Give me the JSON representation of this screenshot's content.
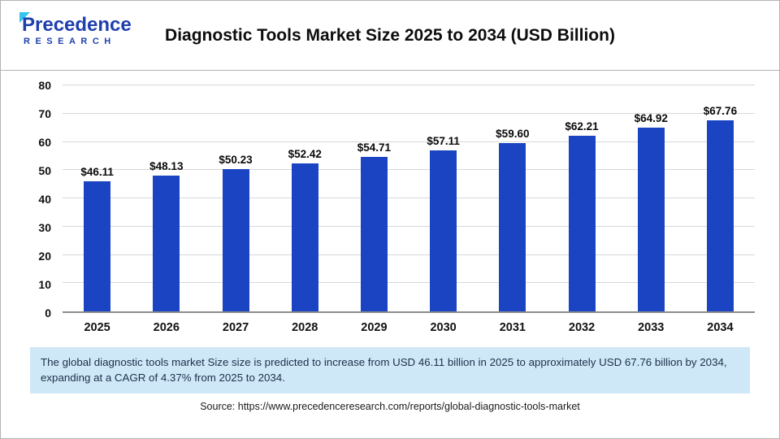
{
  "header": {
    "logo": {
      "line1": "Precedence",
      "line2": "RESEARCH"
    },
    "title": "Diagnostic Tools Market Size 2025 to 2034 (USD Billion)"
  },
  "chart_data": {
    "type": "bar",
    "title": "Diagnostic Tools Market Size 2025 to 2034 (USD Billion)",
    "categories": [
      "2025",
      "2026",
      "2027",
      "2028",
      "2029",
      "2030",
      "2031",
      "2032",
      "2033",
      "2034"
    ],
    "values": [
      46.11,
      48.13,
      50.23,
      52.42,
      54.71,
      57.11,
      59.6,
      62.21,
      64.92,
      67.76
    ],
    "labels": [
      "$46.11",
      "$48.13",
      "$50.23",
      "$52.42",
      "$54.71",
      "$57.11",
      "$59.60",
      "$62.21",
      "$64.92",
      "$67.76"
    ],
    "xlabel": "",
    "ylabel": "",
    "ylim": [
      0,
      80
    ],
    "yticks": [
      0,
      10,
      20,
      30,
      40,
      50,
      60,
      70,
      80
    ],
    "grid": true,
    "legend": false,
    "bar_color": "#1A44C2"
  },
  "note": "The global diagnostic tools market Size size is predicted to increase from USD 46.11 billion in 2025 to approximately USD 67.76 billion by 2034, expanding at a CAGR of 4.37% from 2025 to 2034.",
  "source": "Source: https://www.precedenceresearch.com/reports/global-diagnostic-tools-market"
}
